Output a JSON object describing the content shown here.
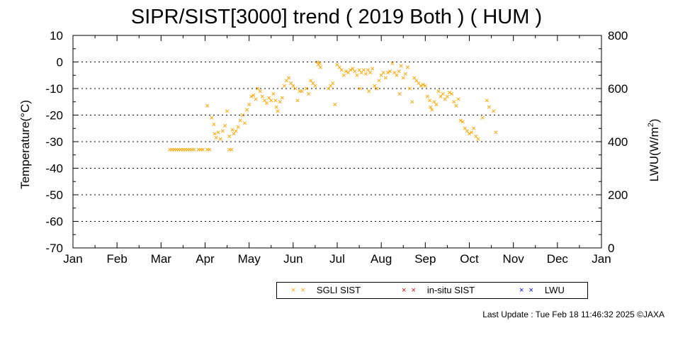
{
  "chart_data": {
    "type": "scatter",
    "title": "SIPR/SIST[3000] trend ( 2019 Both ) ( HUM )",
    "ylabel": "Temperature(°C)",
    "y2label_base": "LWU(W/m",
    "y2label_sup": "2",
    "y2label_end": ")",
    "xlabel": "",
    "ylim": [
      -70,
      10
    ],
    "y2lim": [
      0,
      800
    ],
    "yticks": [
      "10",
      "0",
      "-10",
      "-20",
      "-30",
      "-40",
      "-50",
      "-60",
      "-70"
    ],
    "y2ticks": [
      "800",
      "600",
      "400",
      "200",
      "0"
    ],
    "months": [
      "Jan",
      "Feb",
      "Mar",
      "Apr",
      "May",
      "Jun",
      "Jul",
      "Aug",
      "Sep",
      "Oct",
      "Nov",
      "Dec",
      "Jan"
    ],
    "grid": "horizontal dotted",
    "legend_position": "bottom",
    "series": [
      {
        "name": "SGLI SIST",
        "color": "#FFA500",
        "marker": "x",
        "points": [
          [
            2.2,
            -33
          ],
          [
            2.25,
            -33
          ],
          [
            2.3,
            -33
          ],
          [
            2.35,
            -33
          ],
          [
            2.4,
            -33
          ],
          [
            2.45,
            -33
          ],
          [
            2.5,
            -33
          ],
          [
            2.55,
            -33
          ],
          [
            2.6,
            -33
          ],
          [
            2.65,
            -33
          ],
          [
            2.7,
            -33
          ],
          [
            2.75,
            -33
          ],
          [
            2.85,
            -33
          ],
          [
            2.9,
            -33
          ],
          [
            2.95,
            -33
          ],
          [
            3.05,
            -33
          ],
          [
            3.1,
            -33
          ],
          [
            3.05,
            -16.5
          ],
          [
            3.15,
            -21
          ],
          [
            3.2,
            -23.5
          ],
          [
            3.22,
            -27
          ],
          [
            3.25,
            -28.5
          ],
          [
            3.3,
            -26.5
          ],
          [
            3.35,
            -29
          ],
          [
            3.4,
            -26
          ],
          [
            3.45,
            -24
          ],
          [
            3.5,
            -18.5
          ],
          [
            3.55,
            -28
          ],
          [
            3.55,
            -33
          ],
          [
            3.6,
            -33
          ],
          [
            3.62,
            -25.5
          ],
          [
            3.65,
            -27
          ],
          [
            3.7,
            -26
          ],
          [
            3.75,
            -24.5
          ],
          [
            3.8,
            -22
          ],
          [
            3.85,
            -20
          ],
          [
            3.9,
            -23
          ],
          [
            3.95,
            -18
          ],
          [
            4.0,
            -16
          ],
          [
            4.05,
            -13
          ],
          [
            4.1,
            -12.5
          ],
          [
            4.15,
            -14
          ],
          [
            4.2,
            -10
          ],
          [
            4.25,
            -11
          ],
          [
            4.3,
            -13
          ],
          [
            4.35,
            -14.5
          ],
          [
            4.4,
            -15.5
          ],
          [
            4.45,
            -13.5
          ],
          [
            4.5,
            -14.5
          ],
          [
            4.55,
            -12
          ],
          [
            4.6,
            -14.5
          ],
          [
            4.62,
            -17
          ],
          [
            4.65,
            -18.5
          ],
          [
            4.7,
            -15
          ],
          [
            4.75,
            -13.5
          ],
          [
            4.8,
            -9
          ],
          [
            4.85,
            -7
          ],
          [
            4.9,
            -6
          ],
          [
            4.95,
            -8
          ],
          [
            5.0,
            -9
          ],
          [
            5.05,
            -10
          ],
          [
            5.1,
            -14.5
          ],
          [
            5.15,
            -11
          ],
          [
            5.2,
            -11
          ],
          [
            5.3,
            -10
          ],
          [
            5.35,
            -12
          ],
          [
            5.4,
            -7
          ],
          [
            5.45,
            -8
          ],
          [
            5.5,
            -9
          ],
          [
            5.55,
            0
          ],
          [
            5.57,
            -1
          ],
          [
            5.6,
            -0.5
          ],
          [
            5.62,
            -2
          ],
          [
            5.8,
            -10
          ],
          [
            5.85,
            -9
          ],
          [
            5.9,
            -8
          ],
          [
            5.95,
            -16
          ],
          [
            6.0,
            -1
          ],
          [
            6.05,
            -2
          ],
          [
            6.1,
            -3
          ],
          [
            6.15,
            -5
          ],
          [
            6.2,
            -3.5
          ],
          [
            6.25,
            -4
          ],
          [
            6.3,
            -3
          ],
          [
            6.35,
            -2.5
          ],
          [
            6.4,
            -3.5
          ],
          [
            6.45,
            -5
          ],
          [
            6.5,
            -3
          ],
          [
            6.52,
            -10
          ],
          [
            6.55,
            -4
          ],
          [
            6.6,
            -3
          ],
          [
            6.65,
            -4.5
          ],
          [
            6.7,
            -3
          ],
          [
            6.72,
            -11
          ],
          [
            6.75,
            -4
          ],
          [
            6.8,
            -2.5
          ],
          [
            6.85,
            -9
          ],
          [
            6.9,
            -10
          ],
          [
            6.95,
            -7
          ],
          [
            7.0,
            -5
          ],
          [
            7.05,
            -4
          ],
          [
            7.1,
            -6
          ],
          [
            7.15,
            -4
          ],
          [
            7.2,
            -3.5
          ],
          [
            7.25,
            -0.5
          ],
          [
            7.3,
            -4
          ],
          [
            7.35,
            -5
          ],
          [
            7.4,
            -3.5
          ],
          [
            7.42,
            -12
          ],
          [
            7.45,
            -1.5
          ],
          [
            7.5,
            -6
          ],
          [
            7.55,
            -4.5
          ],
          [
            7.6,
            -2
          ],
          [
            7.65,
            -10
          ],
          [
            7.7,
            -15
          ],
          [
            7.75,
            -6
          ],
          [
            7.8,
            -7
          ],
          [
            7.85,
            -8
          ],
          [
            7.9,
            -9
          ],
          [
            7.95,
            -8.5
          ],
          [
            8.0,
            -9
          ],
          [
            8.05,
            -13
          ],
          [
            8.1,
            -14.5
          ],
          [
            8.12,
            -17
          ],
          [
            8.15,
            -18
          ],
          [
            8.2,
            -15
          ],
          [
            8.25,
            -16
          ],
          [
            8.3,
            -11
          ],
          [
            8.35,
            -13
          ],
          [
            8.4,
            -12
          ],
          [
            8.45,
            -14
          ],
          [
            8.5,
            -13
          ],
          [
            8.55,
            -11.5
          ],
          [
            8.6,
            -12
          ],
          [
            8.65,
            -15
          ],
          [
            8.7,
            -16.5
          ],
          [
            8.75,
            -14
          ],
          [
            8.8,
            -22
          ],
          [
            8.85,
            -22.5
          ],
          [
            8.9,
            -25
          ],
          [
            8.95,
            -26
          ],
          [
            9.0,
            -27
          ],
          [
            9.05,
            -26.5
          ],
          [
            9.1,
            -25
          ],
          [
            9.15,
            -28
          ],
          [
            9.2,
            -29
          ],
          [
            9.3,
            -21
          ],
          [
            9.4,
            -14.5
          ],
          [
            9.45,
            -17
          ],
          [
            9.55,
            -18.5
          ],
          [
            9.6,
            -26.5
          ]
        ]
      },
      {
        "name": "in-situ SIST",
        "color": "#E00000",
        "marker": "x",
        "points": []
      },
      {
        "name": "LWU",
        "color": "#0000E0",
        "marker": "x",
        "points": []
      }
    ],
    "footer": "Last Update : Tue Feb 18 11:46:32 2025  ©JAXA"
  }
}
